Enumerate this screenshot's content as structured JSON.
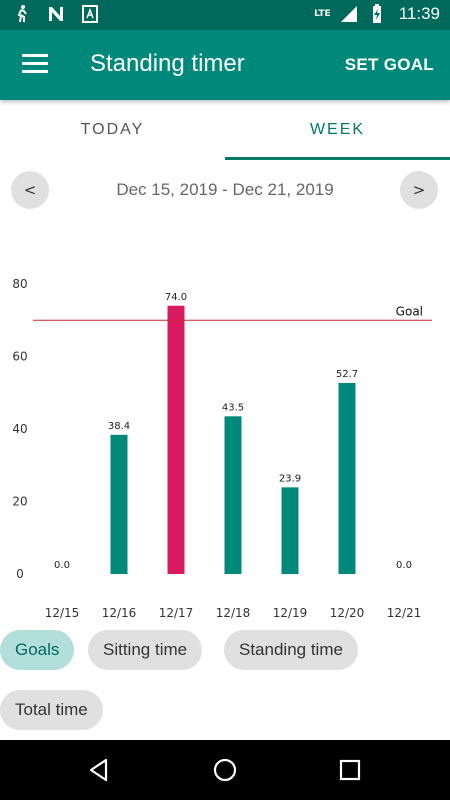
{
  "status_bar": {
    "time": "11:39",
    "network": "LTE",
    "icons": [
      "walk-icon",
      "n-icon",
      "a-icon",
      "signal-icon",
      "battery-charging-icon"
    ]
  },
  "app_bar": {
    "title": "Standing timer",
    "action": "SET GOAL"
  },
  "tabs": [
    {
      "label": "TODAY",
      "selected": false
    },
    {
      "label": "WEEK",
      "selected": true
    }
  ],
  "date_nav": {
    "prev": "<",
    "next": ">",
    "range": "Dec 15, 2019 - Dec 21, 2019"
  },
  "chart_data": {
    "type": "bar",
    "categories": [
      "12/15",
      "12/16",
      "12/17",
      "12/18",
      "12/19",
      "12/20",
      "12/21"
    ],
    "values": [
      0.0,
      38.4,
      74.0,
      43.5,
      23.9,
      52.7,
      0.0
    ],
    "value_labels": [
      "0.0",
      "38.4",
      "74.0",
      "43.5",
      "23.9",
      "52.7",
      "0.0"
    ],
    "highlight_index": 2,
    "goal": 70,
    "goal_label": "Goal",
    "ylim": [
      0,
      80
    ],
    "yticks": [
      0,
      20,
      40,
      60,
      80
    ],
    "colors": {
      "bar": "#00897b",
      "highlight": "#d81b60",
      "goal_line": "#c62828"
    },
    "grid": false
  },
  "filters": [
    {
      "label": "Goals",
      "selected": true
    },
    {
      "label": "Sitting time",
      "selected": false
    },
    {
      "label": "Standing time",
      "selected": false
    },
    {
      "label": "Total time",
      "selected": false
    }
  ],
  "colors": {
    "primary": "#00897b",
    "primary_dark": "#00695c"
  }
}
